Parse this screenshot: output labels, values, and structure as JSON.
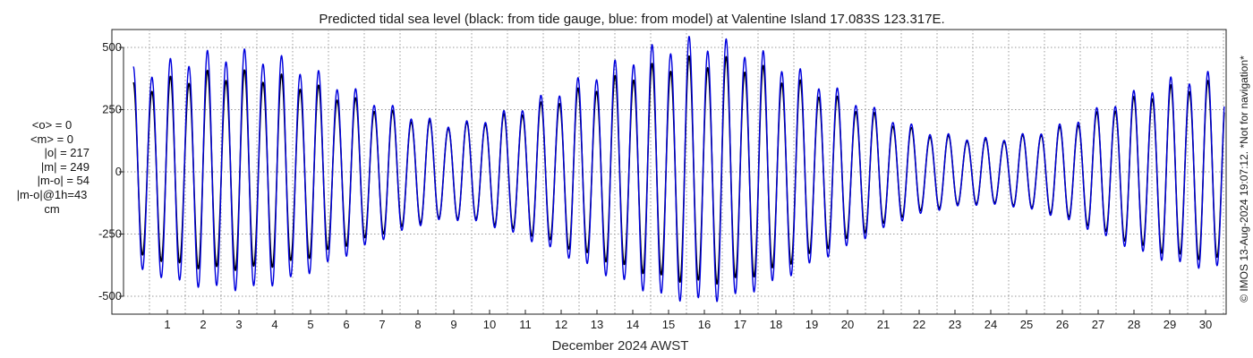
{
  "chart_data": {
    "type": "line",
    "title": "Predicted tidal sea level (black: from tide gauge, blue: from model) at Valentine Island 17.083S 123.317E.",
    "xlabel": "December 2024 AWST",
    "ylabel": "",
    "xlim": [
      0,
      31
    ],
    "ylim": [
      -570,
      570
    ],
    "yticks": [
      500,
      250,
      0,
      -250,
      -500
    ],
    "ytick_labels": [
      "500",
      "250",
      "0",
      "-250",
      "-500"
    ],
    "xticks": [
      1,
      2,
      3,
      4,
      5,
      6,
      7,
      8,
      9,
      10,
      11,
      12,
      13,
      14,
      15,
      16,
      17,
      18,
      19,
      20,
      21,
      22,
      23,
      24,
      25,
      26,
      27,
      28,
      29,
      30
    ],
    "xtick_labels": [
      "1",
      "2",
      "3",
      "4",
      "5",
      "6",
      "7",
      "8",
      "9",
      "10",
      "11",
      "12",
      "13",
      "14",
      "15",
      "16",
      "17",
      "18",
      "19",
      "20",
      "21",
      "22",
      "23",
      "24",
      "25",
      "26",
      "27",
      "28",
      "29",
      "30"
    ],
    "grid": true,
    "legend": "none",
    "colors": {
      "gauge": "#000000",
      "model": "#0000dd",
      "grid": "#9a9a9a"
    },
    "series": [
      {
        "name": "tide gauge",
        "color": "#000000",
        "x": [
          0.5,
          1,
          1.5,
          2,
          2.5,
          3,
          3.5,
          4,
          4.5,
          5,
          5.5,
          6,
          6.5,
          7,
          7.5,
          8,
          8.5,
          9,
          9.5,
          10,
          10.5,
          11,
          11.5,
          12,
          12.5,
          13,
          13.5,
          14,
          14.5,
          15,
          15.5,
          16,
          16.5,
          17,
          17.5,
          18,
          18.5,
          19,
          19.5,
          20,
          20.5,
          21,
          21.5,
          22,
          22.5,
          23,
          23.5,
          24,
          24.5,
          25,
          25.5,
          26,
          26.5,
          27,
          27.5,
          28,
          28.5,
          29,
          29.5,
          30,
          30.5
        ],
        "amplitude": [
          340,
          370,
          385,
          390,
          385,
          370,
          340,
          305,
          270,
          235,
          205,
          185,
          190,
          215,
          245,
          280,
          320,
          355,
          390,
          420,
          440,
          445,
          430,
          400,
          360,
          315,
          270,
          225,
          180,
          150,
          135,
          125,
          130,
          150,
          175,
          215,
          260,
          300,
          330,
          345,
          350
        ],
        "amplitude_x": [
          0.5,
          1.25,
          2,
          2.75,
          3.5,
          4.25,
          5,
          5.75,
          6.5,
          7.25,
          8,
          8.75,
          9.5,
          10.25,
          11,
          11.75,
          12.5,
          13.25,
          14,
          14.75,
          15.5,
          16.25,
          17,
          17.75,
          18.5,
          19.25,
          20,
          20.75,
          21.5,
          22.25,
          23,
          23.75,
          24.5,
          25.25,
          26,
          26.75,
          27.5,
          28.25,
          29,
          29.75,
          30.5
        ]
      },
      {
        "name": "model",
        "color": "#0000dd",
        "amplitude": [
          400,
          440,
          460,
          470,
          465,
          440,
          400,
          350,
          300,
          255,
          215,
          190,
          195,
          225,
          265,
          310,
          360,
          410,
          455,
          495,
          515,
          515,
          495,
          455,
          405,
          350,
          300,
          245,
          195,
          160,
          140,
          130,
          135,
          155,
          185,
          230,
          280,
          325,
          360,
          380,
          385
        ],
        "amplitude_x": [
          0.5,
          1.25,
          2,
          2.75,
          3.5,
          4.25,
          5,
          5.75,
          6.5,
          7.25,
          8,
          8.75,
          9.5,
          10.25,
          11,
          11.75,
          12.5,
          13.25,
          14,
          14.75,
          15.5,
          16.25,
          17,
          17.75,
          18.5,
          19.25,
          20,
          20.75,
          21.5,
          22.25,
          23,
          23.75,
          24.5,
          25.25,
          26,
          26.75,
          27.5,
          28.25,
          29,
          29.75,
          30.5
        ]
      }
    ],
    "period_days": 0.5175,
    "phase_days": 0.05
  },
  "stats": {
    "lines": [
      "<o> = 0",
      "<m> = 0",
      "|o| = 217",
      "|m| = 249",
      "|m-o| = 54",
      "|m-o|@1h=43",
      "cm"
    ]
  },
  "credit": "© IMOS 13-Aug-2024 19:07:12. *Not for navigation*"
}
